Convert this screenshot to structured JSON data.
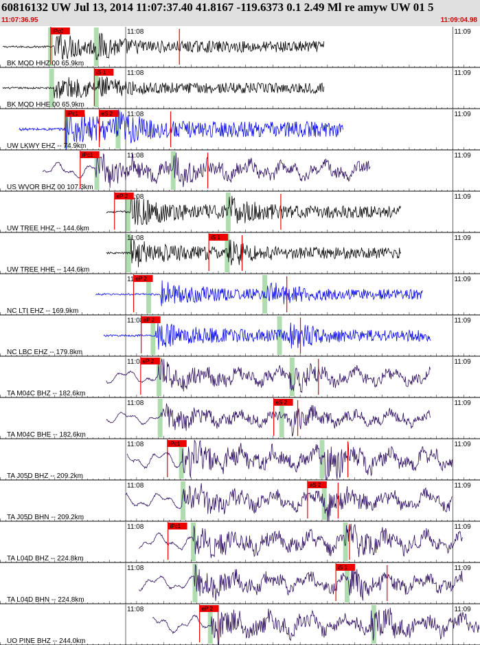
{
  "header": {
    "title": "60816132 UW Jul 13, 2014 11:07:37.40   41.8167 -119.6373  0.1 2.49 Ml re amyw UW 01   5",
    "start_time": "11:07:36.95",
    "end_time": "11:09:04.98"
  },
  "colors": {
    "black_trace": "#000000",
    "blue_trace": "#0000ee",
    "purple_trace": "#2a0a5c",
    "pick": "#ee0000",
    "window": "#b0ddb0",
    "header_bg": "#e0e0e0"
  },
  "chart_data": {
    "type": "seismogram",
    "x_unit": "seconds after 11:07:36.95",
    "xlim": [
      0,
      88.03
    ],
    "time_marks": [
      {
        "label": "11:08",
        "t": 23.05
      },
      {
        "label": "11:09",
        "t": 83.05
      }
    ],
    "traces": [
      {
        "label": "BK MOD HHZ 00 65.9km",
        "color": "black",
        "start": 0.5,
        "end": 59.5,
        "amp": 0.55,
        "onset": 9.9,
        "s_onset": 17.5,
        "p_window": 9.2,
        "s_window": 17.6,
        "picks": [
          {
            "label": "iPc0",
            "t": 9.3
          }
        ],
        "markers": [
          32.9
        ]
      },
      {
        "label": "BK MOD HHE 00 65.9km",
        "color": "black",
        "start": 0.5,
        "end": 59.5,
        "amp": 0.5,
        "onset": 9.9,
        "s_onset": 17.3,
        "p_window": 9.4,
        "s_window": 17.6,
        "picks": [
          {
            "label": "iS 1",
            "t": 17.3
          }
        ],
        "markers": []
      },
      {
        "label": "UW LKWY EHZ -- 74.9km",
        "color": "blue",
        "start": 3.5,
        "end": 63.0,
        "amp": 0.75,
        "onset": 12.0,
        "s_onset": 21.2,
        "p_window": 12.1,
        "s_window": 21.6,
        "picks": [
          {
            "label": "iPc1",
            "t": 12.0
          },
          {
            "label": "eS 2",
            "t": 18.2
          }
        ],
        "markers": [
          31.3
        ]
      },
      {
        "label": "US WVOR BHZ 00 107.3km",
        "color": "purple",
        "start": 7.8,
        "end": 68.0,
        "amp": 0.62,
        "onset": 17.5,
        "s_onset": 31.5,
        "p_window": 17.7,
        "s_window": 31.7,
        "picks": [
          {
            "label": "iPc1",
            "t": 14.7
          }
        ],
        "markers": [
          38.1
        ]
      },
      {
        "label": "UW TREE HHZ -- 144.6km",
        "color": "black",
        "start": 19.5,
        "end": 73.5,
        "amp": 0.6,
        "onset": 24.0,
        "s_onset": 42.0,
        "p_window": 23.4,
        "s_window": 41.8,
        "picks": [
          {
            "label": "eP 2",
            "t": 21.0
          }
        ],
        "markers": [
          51.5
        ]
      },
      {
        "label": "UW TREE HHE -- 144.6km",
        "color": "black",
        "start": 19.5,
        "end": 73.5,
        "amp": 0.55,
        "onset": 24.0,
        "s_onset": 41.9,
        "p_window": 23.5,
        "s_window": 41.6,
        "picks": [
          {
            "label": "iS 1",
            "t": 38.3
          }
        ],
        "markers": [
          44.4
        ]
      },
      {
        "label": "NC LTI EHZ -- 169.9km",
        "color": "blue",
        "start": 17.5,
        "end": 77.5,
        "amp": 0.5,
        "onset": 29.4,
        "s_onset": 49.0,
        "p_window": 27.2,
        "s_window": 48.5,
        "picks": [
          {
            "label": "eP 2",
            "t": 24.5
          }
        ],
        "markers": [
          52.6
        ]
      },
      {
        "label": "NC LBC EHZ -- 179.8km",
        "color": "blue",
        "start": 19.0,
        "end": 79.0,
        "amp": 0.55,
        "onset": 28.5,
        "s_onset": 53.0,
        "p_window": 28.0,
        "s_window": 51.2,
        "picks": [
          {
            "label": "eP 2",
            "t": 25.9
          }
        ],
        "markers": [
          55.1
        ]
      },
      {
        "label": "TA M04C BHZ -- 182.6km",
        "color": "purple",
        "start": 19.5,
        "end": 79.0,
        "amp": 0.55,
        "onset": 29.1,
        "s_onset": 53.0,
        "p_window": 29.1,
        "s_window": 53.5,
        "picks": [
          {
            "label": "eP 2",
            "t": 25.8
          }
        ],
        "markers": [
          58.4
        ]
      },
      {
        "label": "TA M04C BHE -- 182.6km",
        "color": "purple",
        "start": 19.5,
        "end": 79.0,
        "amp": 0.5,
        "onset": 29.4,
        "s_onset": 53.5,
        "p_window": 29.3,
        "s_window": 51.6,
        "picks": [
          {
            "label": "eS 2",
            "t": 50.2
          }
        ],
        "markers": [
          54.6
        ]
      },
      {
        "label": "TA J05D BHZ -- 209.2km",
        "color": "purple",
        "start": 23.3,
        "end": 83.0,
        "amp": 0.72,
        "onset": 33.5,
        "s_onset": 59.5,
        "p_window": 33.2,
        "s_window": 59.0,
        "picks": [
          {
            "label": "iPc1",
            "t": 30.7
          }
        ],
        "markers": [
          63.8
        ]
      },
      {
        "label": "TA J05D BHN -- 209.2km",
        "color": "purple",
        "start": 23.0,
        "end": 83.0,
        "amp": 0.62,
        "onset": 33.4,
        "s_onset": 59.5,
        "p_window": 33.5,
        "s_window": 59.4,
        "picks": [
          {
            "label": "eS 2",
            "t": 56.4
          }
        ],
        "markers": [
          62.0
        ]
      },
      {
        "label": "TA L04D BHZ -- 224.8km",
        "color": "purple",
        "start": 25.5,
        "end": 85.0,
        "amp": 0.65,
        "onset": 35.4,
        "s_onset": 63.5,
        "p_window": 35.4,
        "s_window": 63.3,
        "picks": [
          {
            "label": "iPc1",
            "t": 30.8
          }
        ],
        "markers": [
          64.1
        ]
      },
      {
        "label": "TA L04D BHN -- 224.8km",
        "color": "purple",
        "start": 25.5,
        "end": 85.0,
        "amp": 0.6,
        "onset": 35.6,
        "s_onset": 64.0,
        "p_window": 35.7,
        "s_window": 63.6,
        "picks": [
          {
            "label": "iS 1",
            "t": 61.6
          }
        ],
        "markers": [
          71.0
        ]
      },
      {
        "label": "UO PINE BHZ -- 244.0km",
        "color": "purple",
        "start": 28.0,
        "end": 88.0,
        "amp": 0.7,
        "onset": 38.7,
        "s_onset": 68.0,
        "p_window": 38.5,
        "s_window": 68.5,
        "picks": [
          {
            "label": "eP 2",
            "t": 36.6
          }
        ],
        "markers": [
          40.0
        ]
      }
    ]
  }
}
